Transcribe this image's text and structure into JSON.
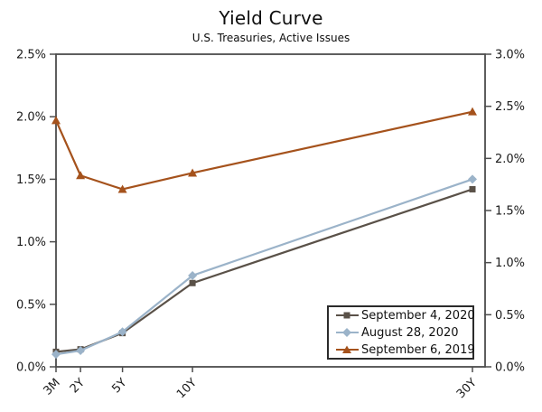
{
  "title": "Yield Curve",
  "subtitle": "U.S. Treasuries, Active Issues",
  "chart_data": {
    "type": "line",
    "title": "Yield Curve",
    "subtitle": "U.S. Treasuries, Active Issues",
    "categories": [
      "3M",
      "2Y",
      "5Y",
      "10Y",
      "30Y"
    ],
    "x_years": [
      0.25,
      2,
      5,
      10,
      30
    ],
    "series": [
      {
        "name": "September 4, 2020",
        "marker": "square",
        "color": "#5a5148",
        "values": [
          0.12,
          0.14,
          0.27,
          0.67,
          1.42
        ]
      },
      {
        "name": "August 28, 2020",
        "marker": "diamond",
        "color": "#9bb3c9",
        "values": [
          0.1,
          0.13,
          0.28,
          0.73,
          1.5
        ]
      },
      {
        "name": "September 6, 2019",
        "marker": "triangle",
        "color": "#a5521c",
        "values": [
          1.97,
          1.53,
          1.42,
          1.55,
          2.04
        ]
      }
    ],
    "left_axis": {
      "min": 0,
      "max": 2.5,
      "ticks": [
        "0.0%",
        "0.5%",
        "1.0%",
        "1.5%",
        "2.0%",
        "2.5%"
      ]
    },
    "right_axis": {
      "min": 0,
      "max": 3.0,
      "ticks": [
        "0.0%",
        "0.5%",
        "1.0%",
        "1.5%",
        "2.0%",
        "2.5%",
        "3.0%"
      ]
    },
    "grid": false,
    "legend_position": "bottom-right",
    "axis_color": "#4d4d4d",
    "text_color": "#1b1b1b"
  }
}
